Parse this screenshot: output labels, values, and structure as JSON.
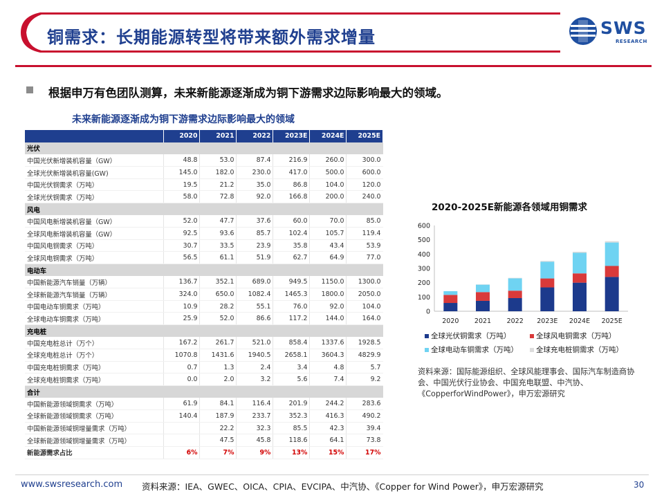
{
  "header": {
    "title": "铜需求：长期能源转型将带来额外需求增量",
    "logo_text": "SWS",
    "logo_sub": "RESEARCH"
  },
  "bullet": "根据申万有色团队测算，未来新能源逐渐成为铜下游需求边际影响最大的领域。",
  "table": {
    "caption": "未来新能源逐渐成为铜下游需求边际影响最大的领域",
    "columns": [
      "",
      "2020",
      "2021",
      "2022",
      "2023E",
      "2024E",
      "2025E"
    ],
    "sections": [
      {
        "name": "光伏",
        "rows": [
          {
            "label": "中国光伏新增装机容量（GW）",
            "values": [
              "48.8",
              "53.0",
              "87.4",
              "216.9",
              "260.0",
              "300.0"
            ]
          },
          {
            "label": "全球光伏新增装机容量(GW)",
            "values": [
              "145.0",
              "182.0",
              "230.0",
              "417.0",
              "500.0",
              "600.0"
            ]
          },
          {
            "label": "中国光伏铜需求（万吨）",
            "values": [
              "19.5",
              "21.2",
              "35.0",
              "86.8",
              "104.0",
              "120.0"
            ]
          },
          {
            "label": "全球光伏铜需求（万吨）",
            "values": [
              "58.0",
              "72.8",
              "92.0",
              "166.8",
              "200.0",
              "240.0"
            ]
          }
        ]
      },
      {
        "name": "风电",
        "rows": [
          {
            "label": "中国风电新增装机容量（GW）",
            "values": [
              "52.0",
              "47.7",
              "37.6",
              "60.0",
              "70.0",
              "85.0"
            ]
          },
          {
            "label": "全球风电新增装机容量（GW）",
            "values": [
              "92.5",
              "93.6",
              "85.7",
              "102.4",
              "105.7",
              "119.4"
            ]
          },
          {
            "label": "中国风电铜需求（万吨）",
            "values": [
              "30.7",
              "33.5",
              "23.9",
              "35.8",
              "43.4",
              "53.9"
            ]
          },
          {
            "label": "全球风电铜需求（万吨）",
            "values": [
              "56.5",
              "61.1",
              "51.9",
              "62.7",
              "64.9",
              "77.0"
            ]
          }
        ]
      },
      {
        "name": "电动车",
        "rows": [
          {
            "label": "中国新能源汽车销量（万辆）",
            "values": [
              "136.7",
              "352.1",
              "689.0",
              "949.5",
              "1150.0",
              "1300.0"
            ]
          },
          {
            "label": "全球新能源汽车销量（万辆）",
            "values": [
              "324.0",
              "650.0",
              "1082.4",
              "1465.3",
              "1800.0",
              "2050.0"
            ]
          },
          {
            "label": "中国电动车铜需求（万吨）",
            "values": [
              "10.9",
              "28.2",
              "55.1",
              "76.0",
              "92.0",
              "104.0"
            ]
          },
          {
            "label": "全球电动车铜需求（万吨）",
            "values": [
              "25.9",
              "52.0",
              "86.6",
              "117.2",
              "144.0",
              "164.0"
            ]
          }
        ]
      },
      {
        "name": "充电桩",
        "rows": [
          {
            "label": "中国充电桩总计（万个）",
            "values": [
              "167.2",
              "261.7",
              "521.0",
              "858.4",
              "1337.6",
              "1928.5"
            ]
          },
          {
            "label": "全球充电桩总计（万个）",
            "values": [
              "1070.8",
              "1431.6",
              "1940.5",
              "2658.1",
              "3604.3",
              "4829.9"
            ]
          },
          {
            "label": "中国充电桩铜需求（万吨）",
            "values": [
              "0.7",
              "1.3",
              "2.4",
              "3.4",
              "4.8",
              "5.7"
            ]
          },
          {
            "label": "全球充电桩铜需求（万吨）",
            "values": [
              "0.0",
              "2.0",
              "3.2",
              "5.6",
              "7.4",
              "9.2"
            ]
          }
        ]
      },
      {
        "name": "合计",
        "rows": [
          {
            "label": "中国新能源领域铜需求（万吨）",
            "values": [
              "61.9",
              "84.1",
              "116.4",
              "201.9",
              "244.2",
              "283.6"
            ]
          },
          {
            "label": "全球新能源领域铜需求（万吨）",
            "values": [
              "140.4",
              "187.9",
              "233.7",
              "352.3",
              "416.3",
              "490.2"
            ]
          },
          {
            "label": "中国新能源领域铜增量需求（万吨）",
            "values": [
              "",
              "22.2",
              "32.3",
              "85.5",
              "42.3",
              "39.4"
            ]
          },
          {
            "label": "全球新能源领域铜增量需求（万吨）",
            "values": [
              "",
              "47.5",
              "45.8",
              "118.6",
              "64.1",
              "73.8"
            ]
          },
          {
            "label": "新能源需求占比",
            "values": [
              "6%",
              "7%",
              "9%",
              "13%",
              "15%",
              "17%"
            ],
            "highlight": true
          }
        ]
      }
    ]
  },
  "chart_data": {
    "type": "bar",
    "stacked": true,
    "title": "2020-2025E新能源各领域用铜需求",
    "categories": [
      "2020",
      "2021",
      "2022",
      "2023E",
      "2024E",
      "2025E"
    ],
    "ylim": [
      0,
      600
    ],
    "yticks": [
      0,
      100,
      200,
      300,
      400,
      500,
      600
    ],
    "grid": false,
    "legend_position": "bottom",
    "series": [
      {
        "name": "全球光伏铜需求（万吨）",
        "color": "#1c3a8c",
        "values": [
          58.0,
          72.8,
          92.0,
          166.8,
          200.0,
          240.0
        ]
      },
      {
        "name": "全球风电铜需求（万吨）",
        "color": "#d93a3a",
        "values": [
          56.5,
          61.1,
          51.9,
          62.7,
          64.9,
          77.0
        ]
      },
      {
        "name": "全球电动车铜需求（万吨）",
        "color": "#6fd3f2",
        "values": [
          25.9,
          52.0,
          86.6,
          117.2,
          144.0,
          164.0
        ]
      },
      {
        "name": "全球充电桩铜需求（万吨）",
        "color": "#dcdcdc",
        "values": [
          0.0,
          2.0,
          3.2,
          5.6,
          7.4,
          9.2
        ]
      }
    ]
  },
  "source_note": "资料来源：国际能源组织、全球风能理事会、国际汽车制造商协会、中国光伏行业协会、中国充电联盟、中汽协、《CopperforWindPower》，申万宏源研究",
  "footer": {
    "url": "www.swsresearch.com",
    "source": "资料来源：IEA、GWEC、OICA、CPIA、EVCIPA、中汽协、《Copper for Wind Power》，申万宏源研究",
    "page_number": "30"
  },
  "colors": {
    "brand_blue": "#1f3f8f",
    "accent_red": "#c8102e"
  }
}
